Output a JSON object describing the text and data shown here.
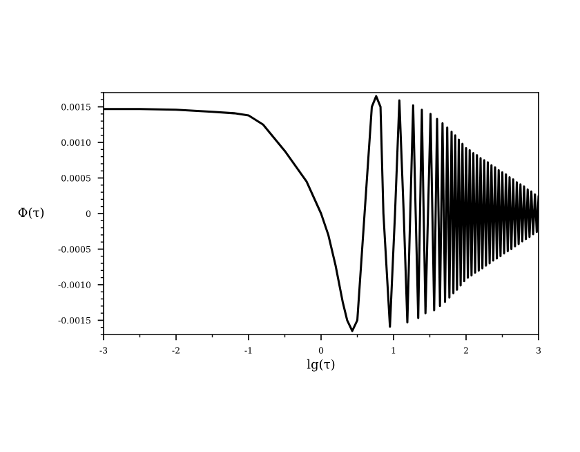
{
  "chart_data": {
    "type": "line",
    "xlabel": "lg(τ)",
    "ylabel": "Φ(τ)",
    "xlim": [
      -3,
      3
    ],
    "xticks": [
      -3,
      -2,
      -1,
      0,
      1,
      2,
      3
    ],
    "ylim": [
      -0.0017,
      0.0017
    ],
    "yticks": [
      {
        "value": -0.0015,
        "label": "-0.0015"
      },
      {
        "value": -0.001,
        "label": "-0.0010"
      },
      {
        "value": -0.0005,
        "label": "-0.0005"
      },
      0,
      {
        "value": 0.0005,
        "label": "0.0005"
      },
      {
        "value": 0.001,
        "label": "0.0010"
      },
      {
        "value": 0.0015,
        "label": "0.0015"
      }
    ],
    "grid": false,
    "legend": false,
    "series": [
      {
        "color": "#000000",
        "x": [
          -3,
          -2.5,
          -2,
          -1.5,
          -1.2,
          -1,
          -0.8,
          -0.5,
          -0.2,
          0,
          0.1,
          0.2,
          0.3,
          0.36,
          0.43,
          0.5,
          0.6,
          0.7,
          0.76,
          0.82,
          0.86,
          0.95,
          1.02,
          1.08,
          1.14,
          1.19,
          1.23,
          1.27,
          1.305,
          1.34,
          1.365,
          1.39,
          1.415,
          1.44,
          1.475,
          1.51,
          1.56,
          1.6,
          1.64,
          1.675,
          1.71,
          1.74,
          1.77,
          1.8,
          1.825,
          1.85,
          1.875,
          1.9,
          1.925,
          1.95,
          1.975,
          2.0,
          2.025,
          2.05,
          2.075,
          2.1,
          2.125,
          2.15,
          2.175,
          2.2,
          2.225,
          2.25,
          2.275,
          2.3,
          2.325,
          2.35,
          2.375,
          2.4,
          2.425,
          2.45,
          2.475,
          2.5,
          2.525,
          2.55,
          2.575,
          2.6,
          2.625,
          2.65,
          2.675,
          2.7,
          2.725,
          2.75,
          2.775,
          2.8,
          2.825,
          2.85,
          2.875,
          2.9,
          2.925,
          2.95,
          2.975,
          3.0
        ],
        "values": [
          0.00147,
          0.00147,
          0.00146,
          0.00143,
          0.00141,
          0.00138,
          0.00125,
          0.00088,
          0.00045,
          0.0,
          -0.0003,
          -0.00073,
          -0.00125,
          -0.0015,
          -0.00165,
          -0.0015,
          0.0,
          0.0015,
          0.00165,
          0.0015,
          0.0,
          -0.00159,
          0.0,
          0.00159,
          0.0,
          -0.00153,
          0.0,
          0.00152,
          0.0,
          -0.00147,
          0.0,
          0.00146,
          0.0,
          -0.0014,
          0.0,
          0.0014,
          -0.00136,
          0.00133,
          -0.0013,
          0.00127,
          -0.00124,
          0.00121,
          -0.00118,
          0.00115,
          -0.00112,
          0.0011,
          -0.00107,
          0.00104,
          -0.00101,
          0.00098,
          -0.00095,
          0.00092,
          -0.0009,
          0.00089,
          -0.00087,
          0.00085,
          -0.00083,
          0.00082,
          -0.0008,
          0.00078,
          -0.00077,
          0.00075,
          -0.00073,
          0.00072,
          -0.0007,
          0.00068,
          -0.00066,
          0.00065,
          -0.00063,
          0.00061,
          -0.0006,
          0.00058,
          -0.00056,
          0.00055,
          -0.00053,
          0.00051,
          -0.0005,
          0.00048,
          -0.00046,
          0.00044,
          -0.00043,
          0.00041,
          -0.00039,
          0.00038,
          -0.00036,
          0.00034,
          -0.00033,
          0.00031,
          -0.00029,
          0.00027,
          -0.00026,
          0.00024
        ]
      }
    ]
  }
}
